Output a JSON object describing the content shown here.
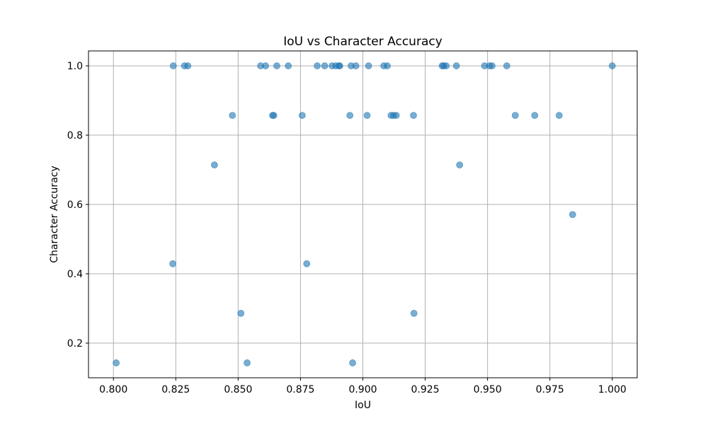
{
  "chart_data": {
    "type": "scatter",
    "title": "IoU vs Character Accuracy",
    "xlabel": "IoU",
    "ylabel": "Character Accuracy",
    "xlim": [
      0.79,
      1.01
    ],
    "ylim": [
      0.1,
      1.043
    ],
    "x_ticks": [
      "0.800",
      "0.825",
      "0.850",
      "0.875",
      "0.900",
      "0.925",
      "0.950",
      "0.975",
      "1.000"
    ],
    "x_tick_values": [
      0.8,
      0.825,
      0.85,
      0.875,
      0.9,
      0.925,
      0.95,
      0.975,
      1.0
    ],
    "y_ticks": [
      "0.2",
      "0.4",
      "0.6",
      "0.8",
      "1.0"
    ],
    "y_tick_values": [
      0.2,
      0.4,
      0.6,
      0.8,
      1.0
    ],
    "grid": true,
    "marker_color": "#1f77b4",
    "marker_opacity": 0.6,
    "points": [
      [
        0.824,
        1.0
      ],
      [
        0.8285,
        1.0
      ],
      [
        0.8298,
        1.0
      ],
      [
        0.859,
        1.0
      ],
      [
        0.861,
        1.0
      ],
      [
        0.8655,
        1.0
      ],
      [
        0.8701,
        1.0
      ],
      [
        0.8817,
        1.0
      ],
      [
        0.8847,
        1.0
      ],
      [
        0.8877,
        1.0
      ],
      [
        0.8892,
        1.0
      ],
      [
        0.8905,
        1.0
      ],
      [
        0.8907,
        1.0
      ],
      [
        0.8953,
        1.0
      ],
      [
        0.8972,
        1.0
      ],
      [
        0.9023,
        1.0
      ],
      [
        0.9084,
        1.0
      ],
      [
        0.9098,
        1.0
      ],
      [
        0.9318,
        1.0
      ],
      [
        0.9324,
        1.0
      ],
      [
        0.9334,
        1.0
      ],
      [
        0.9375,
        1.0
      ],
      [
        0.9488,
        1.0
      ],
      [
        0.9508,
        1.0
      ],
      [
        0.9518,
        1.0
      ],
      [
        0.9577,
        1.0
      ],
      [
        1.0,
        1.0
      ],
      [
        0.8477,
        0.857
      ],
      [
        0.8638,
        0.857
      ],
      [
        0.8643,
        0.857
      ],
      [
        0.8757,
        0.857
      ],
      [
        0.8948,
        0.857
      ],
      [
        0.9017,
        0.857
      ],
      [
        0.9113,
        0.857
      ],
      [
        0.9123,
        0.857
      ],
      [
        0.9134,
        0.857
      ],
      [
        0.9203,
        0.857
      ],
      [
        0.9611,
        0.857
      ],
      [
        0.9689,
        0.857
      ],
      [
        0.9787,
        0.857
      ],
      [
        0.8405,
        0.714
      ],
      [
        0.9388,
        0.714
      ],
      [
        0.9841,
        0.571
      ],
      [
        0.8238,
        0.429
      ],
      [
        0.8775,
        0.429
      ],
      [
        0.8511,
        0.286
      ],
      [
        0.9205,
        0.286
      ],
      [
        0.8011,
        0.143
      ],
      [
        0.8536,
        0.143
      ],
      [
        0.8959,
        0.143
      ]
    ]
  }
}
